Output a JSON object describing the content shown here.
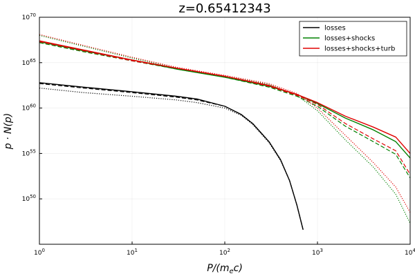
{
  "chart_data": {
    "type": "line",
    "title": "z=0.65412343",
    "xlabel_parts": [
      "P/(m",
      "e",
      "c)"
    ],
    "ylabel_parts": [
      "p · N(p)"
    ],
    "xscale": "log",
    "yscale": "log",
    "xlim": [
      1,
      10000
    ],
    "ylim": [
      1e+45,
      1e+70
    ],
    "x_ticks": [
      {
        "value": 1,
        "base": "10",
        "exp": "0"
      },
      {
        "value": 10,
        "base": "10",
        "exp": "1"
      },
      {
        "value": 100,
        "base": "10",
        "exp": "2"
      },
      {
        "value": 1000,
        "base": "10",
        "exp": "3"
      },
      {
        "value": 10000,
        "base": "10",
        "exp": "4"
      }
    ],
    "y_ticks": [
      {
        "value": 1e+50,
        "base": "10",
        "exp": "50"
      },
      {
        "value": 1e+55,
        "base": "10",
        "exp": "55"
      },
      {
        "value": 1e+60,
        "base": "10",
        "exp": "60"
      },
      {
        "value": 1e+65,
        "base": "10",
        "exp": "65"
      },
      {
        "value": 1e+70,
        "base": "10",
        "exp": "70"
      }
    ],
    "grid": true,
    "legend_position": "top-right",
    "legend": [
      {
        "name": "losses",
        "color": "#000000"
      },
      {
        "name": "losses+shocks",
        "color": "#008000"
      },
      {
        "name": "losses+shocks+turb",
        "color": "#e00000"
      }
    ],
    "series": [
      {
        "name": "losses",
        "style": "solid",
        "color": "#000000",
        "points": [
          [
            1,
            62.8
          ],
          [
            3,
            62.3
          ],
          [
            10,
            61.8
          ],
          [
            30,
            61.3
          ],
          [
            50,
            61.0
          ],
          [
            100,
            60.2
          ],
          [
            150,
            59.3
          ],
          [
            200,
            58.3
          ],
          [
            300,
            56.3
          ],
          [
            400,
            54.3
          ],
          [
            500,
            52.0
          ],
          [
            600,
            49.3
          ],
          [
            700,
            46.6
          ]
        ]
      },
      {
        "name": "losses",
        "style": "dashed",
        "color": "#000000",
        "points": [
          [
            1,
            62.7
          ],
          [
            3,
            62.2
          ],
          [
            10,
            61.7
          ],
          [
            30,
            61.2
          ],
          [
            50,
            60.9
          ],
          [
            100,
            60.2
          ],
          [
            150,
            59.3
          ],
          [
            200,
            58.3
          ],
          [
            300,
            56.3
          ],
          [
            400,
            54.3
          ],
          [
            500,
            52.0
          ],
          [
            600,
            49.3
          ],
          [
            700,
            46.6
          ]
        ]
      },
      {
        "name": "losses",
        "style": "dotted",
        "color": "#000000",
        "points": [
          [
            1,
            62.2
          ],
          [
            3,
            61.7
          ],
          [
            10,
            61.3
          ],
          [
            30,
            60.9
          ],
          [
            50,
            60.6
          ],
          [
            100,
            60.0
          ],
          [
            150,
            59.2
          ],
          [
            200,
            58.2
          ],
          [
            300,
            56.2
          ],
          [
            400,
            54.2
          ],
          [
            500,
            52.0
          ],
          [
            600,
            49.3
          ],
          [
            700,
            46.6
          ]
        ]
      },
      {
        "name": "losses+shocks",
        "style": "solid",
        "color": "#008000",
        "points": [
          [
            1,
            67.3
          ],
          [
            3,
            66.3
          ],
          [
            10,
            65.3
          ],
          [
            30,
            64.3
          ],
          [
            100,
            63.4
          ],
          [
            300,
            62.4
          ],
          [
            600,
            61.5
          ],
          [
            1000,
            60.5
          ],
          [
            2000,
            58.9
          ],
          [
            4000,
            57.6
          ],
          [
            7000,
            56.3
          ],
          [
            10000,
            54.5
          ]
        ]
      },
      {
        "name": "losses+shocks",
        "style": "dashed",
        "color": "#008000",
        "points": [
          [
            1,
            67.2
          ],
          [
            3,
            66.2
          ],
          [
            10,
            65.2
          ],
          [
            30,
            64.3
          ],
          [
            100,
            63.4
          ],
          [
            300,
            62.3
          ],
          [
            600,
            61.3
          ],
          [
            1000,
            60.2
          ],
          [
            2000,
            58.0
          ],
          [
            4000,
            56.3
          ],
          [
            7000,
            54.9
          ],
          [
            10000,
            52.3
          ]
        ]
      },
      {
        "name": "losses+shocks",
        "style": "dotted",
        "color": "#008000",
        "points": [
          [
            1,
            68.0
          ],
          [
            3,
            66.8
          ],
          [
            10,
            65.5
          ],
          [
            30,
            64.4
          ],
          [
            100,
            63.5
          ],
          [
            300,
            62.6
          ],
          [
            600,
            61.4
          ],
          [
            1000,
            59.7
          ],
          [
            2000,
            56.5
          ],
          [
            4000,
            53.5
          ],
          [
            7000,
            50.5
          ],
          [
            10000,
            47.3
          ]
        ]
      },
      {
        "name": "losses+shocks+turb",
        "style": "solid",
        "color": "#e00000",
        "points": [
          [
            1,
            67.4
          ],
          [
            3,
            66.4
          ],
          [
            10,
            65.3
          ],
          [
            30,
            64.4
          ],
          [
            100,
            63.5
          ],
          [
            300,
            62.5
          ],
          [
            600,
            61.5
          ],
          [
            1000,
            60.6
          ],
          [
            2000,
            59.1
          ],
          [
            4000,
            57.9
          ],
          [
            7000,
            56.8
          ],
          [
            10000,
            55.0
          ]
        ]
      },
      {
        "name": "losses+shocks+turb",
        "style": "dashed",
        "color": "#e00000",
        "points": [
          [
            1,
            67.3
          ],
          [
            3,
            66.3
          ],
          [
            10,
            65.2
          ],
          [
            30,
            64.4
          ],
          [
            100,
            63.5
          ],
          [
            300,
            62.4
          ],
          [
            600,
            61.4
          ],
          [
            1000,
            60.4
          ],
          [
            2000,
            58.3
          ],
          [
            4000,
            56.6
          ],
          [
            7000,
            55.3
          ],
          [
            10000,
            52.7
          ]
        ]
      },
      {
        "name": "losses+shocks+turb",
        "style": "dotted",
        "color": "#e00000",
        "points": [
          [
            1,
            68.1
          ],
          [
            3,
            66.9
          ],
          [
            10,
            65.6
          ],
          [
            30,
            64.5
          ],
          [
            100,
            63.6
          ],
          [
            300,
            62.7
          ],
          [
            600,
            61.6
          ],
          [
            1000,
            60.0
          ],
          [
            2000,
            57.0
          ],
          [
            4000,
            54.0
          ],
          [
            7000,
            51.3
          ],
          [
            10000,
            48.5
          ]
        ]
      }
    ]
  }
}
